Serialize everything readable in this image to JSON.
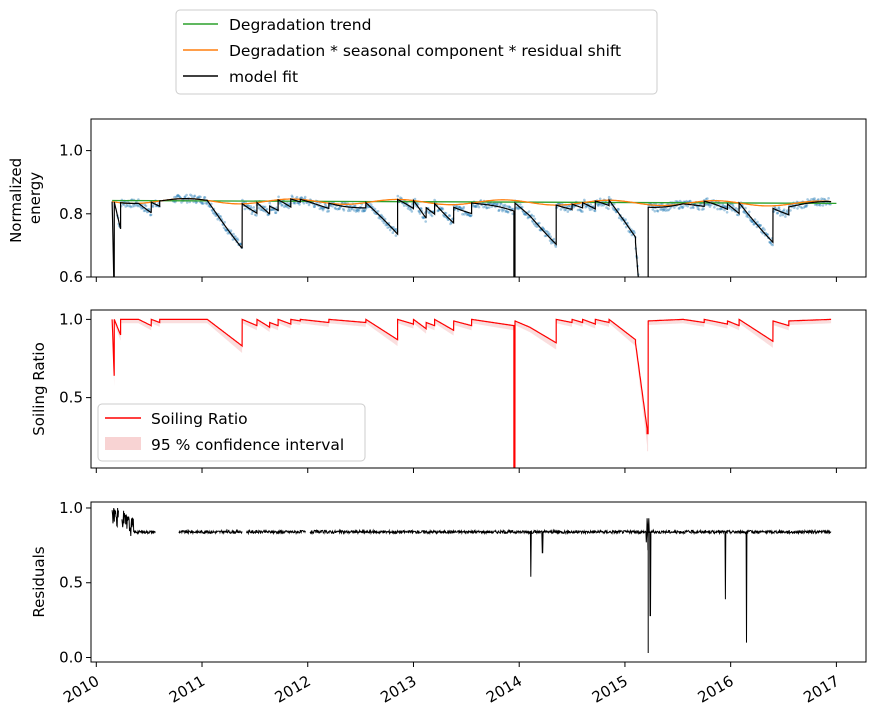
{
  "chart_data": {
    "type": "line",
    "x_axis": {
      "tick_labels": [
        "2010",
        "2011",
        "2012",
        "2013",
        "2014",
        "2015",
        "2016",
        "2017"
      ],
      "xlim": [
        2009.95,
        2017.28
      ]
    },
    "top_legend": {
      "entries": [
        {
          "label": "Degradation trend",
          "color": "#2ca02c"
        },
        {
          "label": "Degradation * seasonal component * residual shift",
          "color": "#ff7f0e"
        },
        {
          "label": "model fit",
          "color": "#000000"
        }
      ]
    },
    "panels": [
      {
        "id": "energy",
        "ylabel_lines": [
          "Normalized",
          "energy"
        ],
        "ylim": [
          0.6,
          1.1
        ],
        "yticks": [
          0.6,
          0.8,
          1.0
        ],
        "ytick_labels": [
          "0.6",
          "0.8",
          "1.0"
        ],
        "series": [
          {
            "name": "Degradation trend",
            "color": "#2ca02c",
            "kind": "line",
            "x": [
              2010.15,
              2017.0
            ],
            "y": [
              0.842,
              0.833
            ]
          },
          {
            "name": "Degradation * seasonal component * residual shift",
            "color": "#ff7f0e",
            "kind": "seasonal",
            "x_start": 2010.15,
            "x_end": 2016.95,
            "base": 0.841,
            "slope": -0.0013,
            "amplitude": 0.008
          },
          {
            "name": "model fit",
            "color": "#000000",
            "kind": "sawtooth"
          },
          {
            "name": "data",
            "color": "#1f77b4",
            "kind": "scatter"
          }
        ]
      },
      {
        "id": "soiling",
        "ylabel": "Soiling Ratio",
        "ylim": [
          0.05,
          1.06
        ],
        "yticks": [
          0.5,
          1.0
        ],
        "ytick_labels": [
          "0.5",
          "1.0"
        ],
        "legend": {
          "entries": [
            {
              "label": "Soiling Ratio",
              "color": "#ff0000"
            },
            {
              "label": "95 % confidence interval",
              "color": "#f4b6b6"
            }
          ]
        }
      },
      {
        "id": "residuals",
        "ylabel": "Residuals",
        "ylim": [
          -0.03,
          1.04
        ],
        "yticks": [
          0.0,
          0.5,
          1.0
        ],
        "ytick_labels": [
          "0.0",
          "0.5",
          "1.0"
        ],
        "baseline": 0.84,
        "spikes": [
          {
            "x": 2014.11,
            "y": 0.54
          },
          {
            "x": 2014.22,
            "y": 0.7
          },
          {
            "x": 2015.22,
            "y": 0.03
          },
          {
            "x": 2015.24,
            "y": 0.28
          },
          {
            "x": 2015.95,
            "y": 0.39
          },
          {
            "x": 2016.15,
            "y": 0.1
          }
        ]
      }
    ],
    "soiling_events": [
      {
        "start": 2010.15,
        "end": 2010.17,
        "s0": 1.0,
        "s1": 0.63
      },
      {
        "start": 2010.17,
        "end": 2010.23,
        "s0": 1.0,
        "s1": 0.9
      },
      {
        "start": 2010.23,
        "end": 2010.4,
        "s0": 1.0,
        "s1": 1.0
      },
      {
        "start": 2010.4,
        "end": 2010.52,
        "s0": 1.0,
        "s1": 0.96
      },
      {
        "start": 2010.52,
        "end": 2010.6,
        "s0": 1.0,
        "s1": 0.98
      },
      {
        "start": 2010.6,
        "end": 2011.05,
        "s0": 1.0,
        "s1": 1.0
      },
      {
        "start": 2011.05,
        "end": 2011.38,
        "s0": 1.0,
        "s1": 0.83
      },
      {
        "start": 2011.38,
        "end": 2011.52,
        "s0": 1.0,
        "s1": 0.96
      },
      {
        "start": 2011.52,
        "end": 2011.64,
        "s0": 1.0,
        "s1": 0.95
      },
      {
        "start": 2011.64,
        "end": 2011.72,
        "s0": 0.98,
        "s1": 0.96
      },
      {
        "start": 2011.72,
        "end": 2011.84,
        "s0": 1.0,
        "s1": 0.97
      },
      {
        "start": 2011.84,
        "end": 2011.93,
        "s0": 1.0,
        "s1": 0.99
      },
      {
        "start": 2011.93,
        "end": 2012.2,
        "s0": 1.0,
        "s1": 0.98
      },
      {
        "start": 2012.2,
        "end": 2012.55,
        "s0": 1.0,
        "s1": 0.98
      },
      {
        "start": 2012.55,
        "end": 2012.85,
        "s0": 1.0,
        "s1": 0.87
      },
      {
        "start": 2012.85,
        "end": 2013.0,
        "s0": 1.0,
        "s1": 0.97
      },
      {
        "start": 2013.0,
        "end": 2013.12,
        "s0": 1.0,
        "s1": 0.94
      },
      {
        "start": 2013.12,
        "end": 2013.2,
        "s0": 0.98,
        "s1": 0.96
      },
      {
        "start": 2013.2,
        "end": 2013.38,
        "s0": 1.0,
        "s1": 0.93
      },
      {
        "start": 2013.38,
        "end": 2013.55,
        "s0": 0.99,
        "s1": 0.96
      },
      {
        "start": 2013.55,
        "end": 2013.95,
        "s0": 1.0,
        "s1": 0.96
      },
      {
        "start": 2013.95,
        "end": 2013.96,
        "s0": 0.05,
        "s1": 0.05
      },
      {
        "start": 2013.96,
        "end": 2014.1,
        "s0": 0.99,
        "s1": 0.95
      },
      {
        "start": 2014.1,
        "end": 2014.35,
        "s0": 0.95,
        "s1": 0.85
      },
      {
        "start": 2014.35,
        "end": 2014.5,
        "s0": 1.0,
        "s1": 0.98
      },
      {
        "start": 2014.5,
        "end": 2014.6,
        "s0": 1.0,
        "s1": 0.98
      },
      {
        "start": 2014.6,
        "end": 2014.72,
        "s0": 1.0,
        "s1": 0.97
      },
      {
        "start": 2014.72,
        "end": 2014.85,
        "s0": 1.0,
        "s1": 0.98
      },
      {
        "start": 2014.85,
        "end": 2015.1,
        "s0": 1.0,
        "s1": 0.87
      },
      {
        "start": 2015.1,
        "end": 2015.21,
        "s0": 0.85,
        "s1": 0.3
      },
      {
        "start": 2015.21,
        "end": 2015.22,
        "s0": 0.27,
        "s1": 0.27
      },
      {
        "start": 2015.22,
        "end": 2015.55,
        "s0": 0.99,
        "s1": 1.0
      },
      {
        "start": 2015.55,
        "end": 2015.75,
        "s0": 1.0,
        "s1": 0.98
      },
      {
        "start": 2015.75,
        "end": 2015.97,
        "s0": 1.0,
        "s1": 0.97
      },
      {
        "start": 2015.97,
        "end": 2016.08,
        "s0": 0.99,
        "s1": 0.96
      },
      {
        "start": 2016.08,
        "end": 2016.4,
        "s0": 1.0,
        "s1": 0.86
      },
      {
        "start": 2016.4,
        "end": 2016.55,
        "s0": 0.99,
        "s1": 0.96
      },
      {
        "start": 2016.55,
        "end": 2016.95,
        "s0": 0.99,
        "s1": 1.0
      }
    ]
  }
}
